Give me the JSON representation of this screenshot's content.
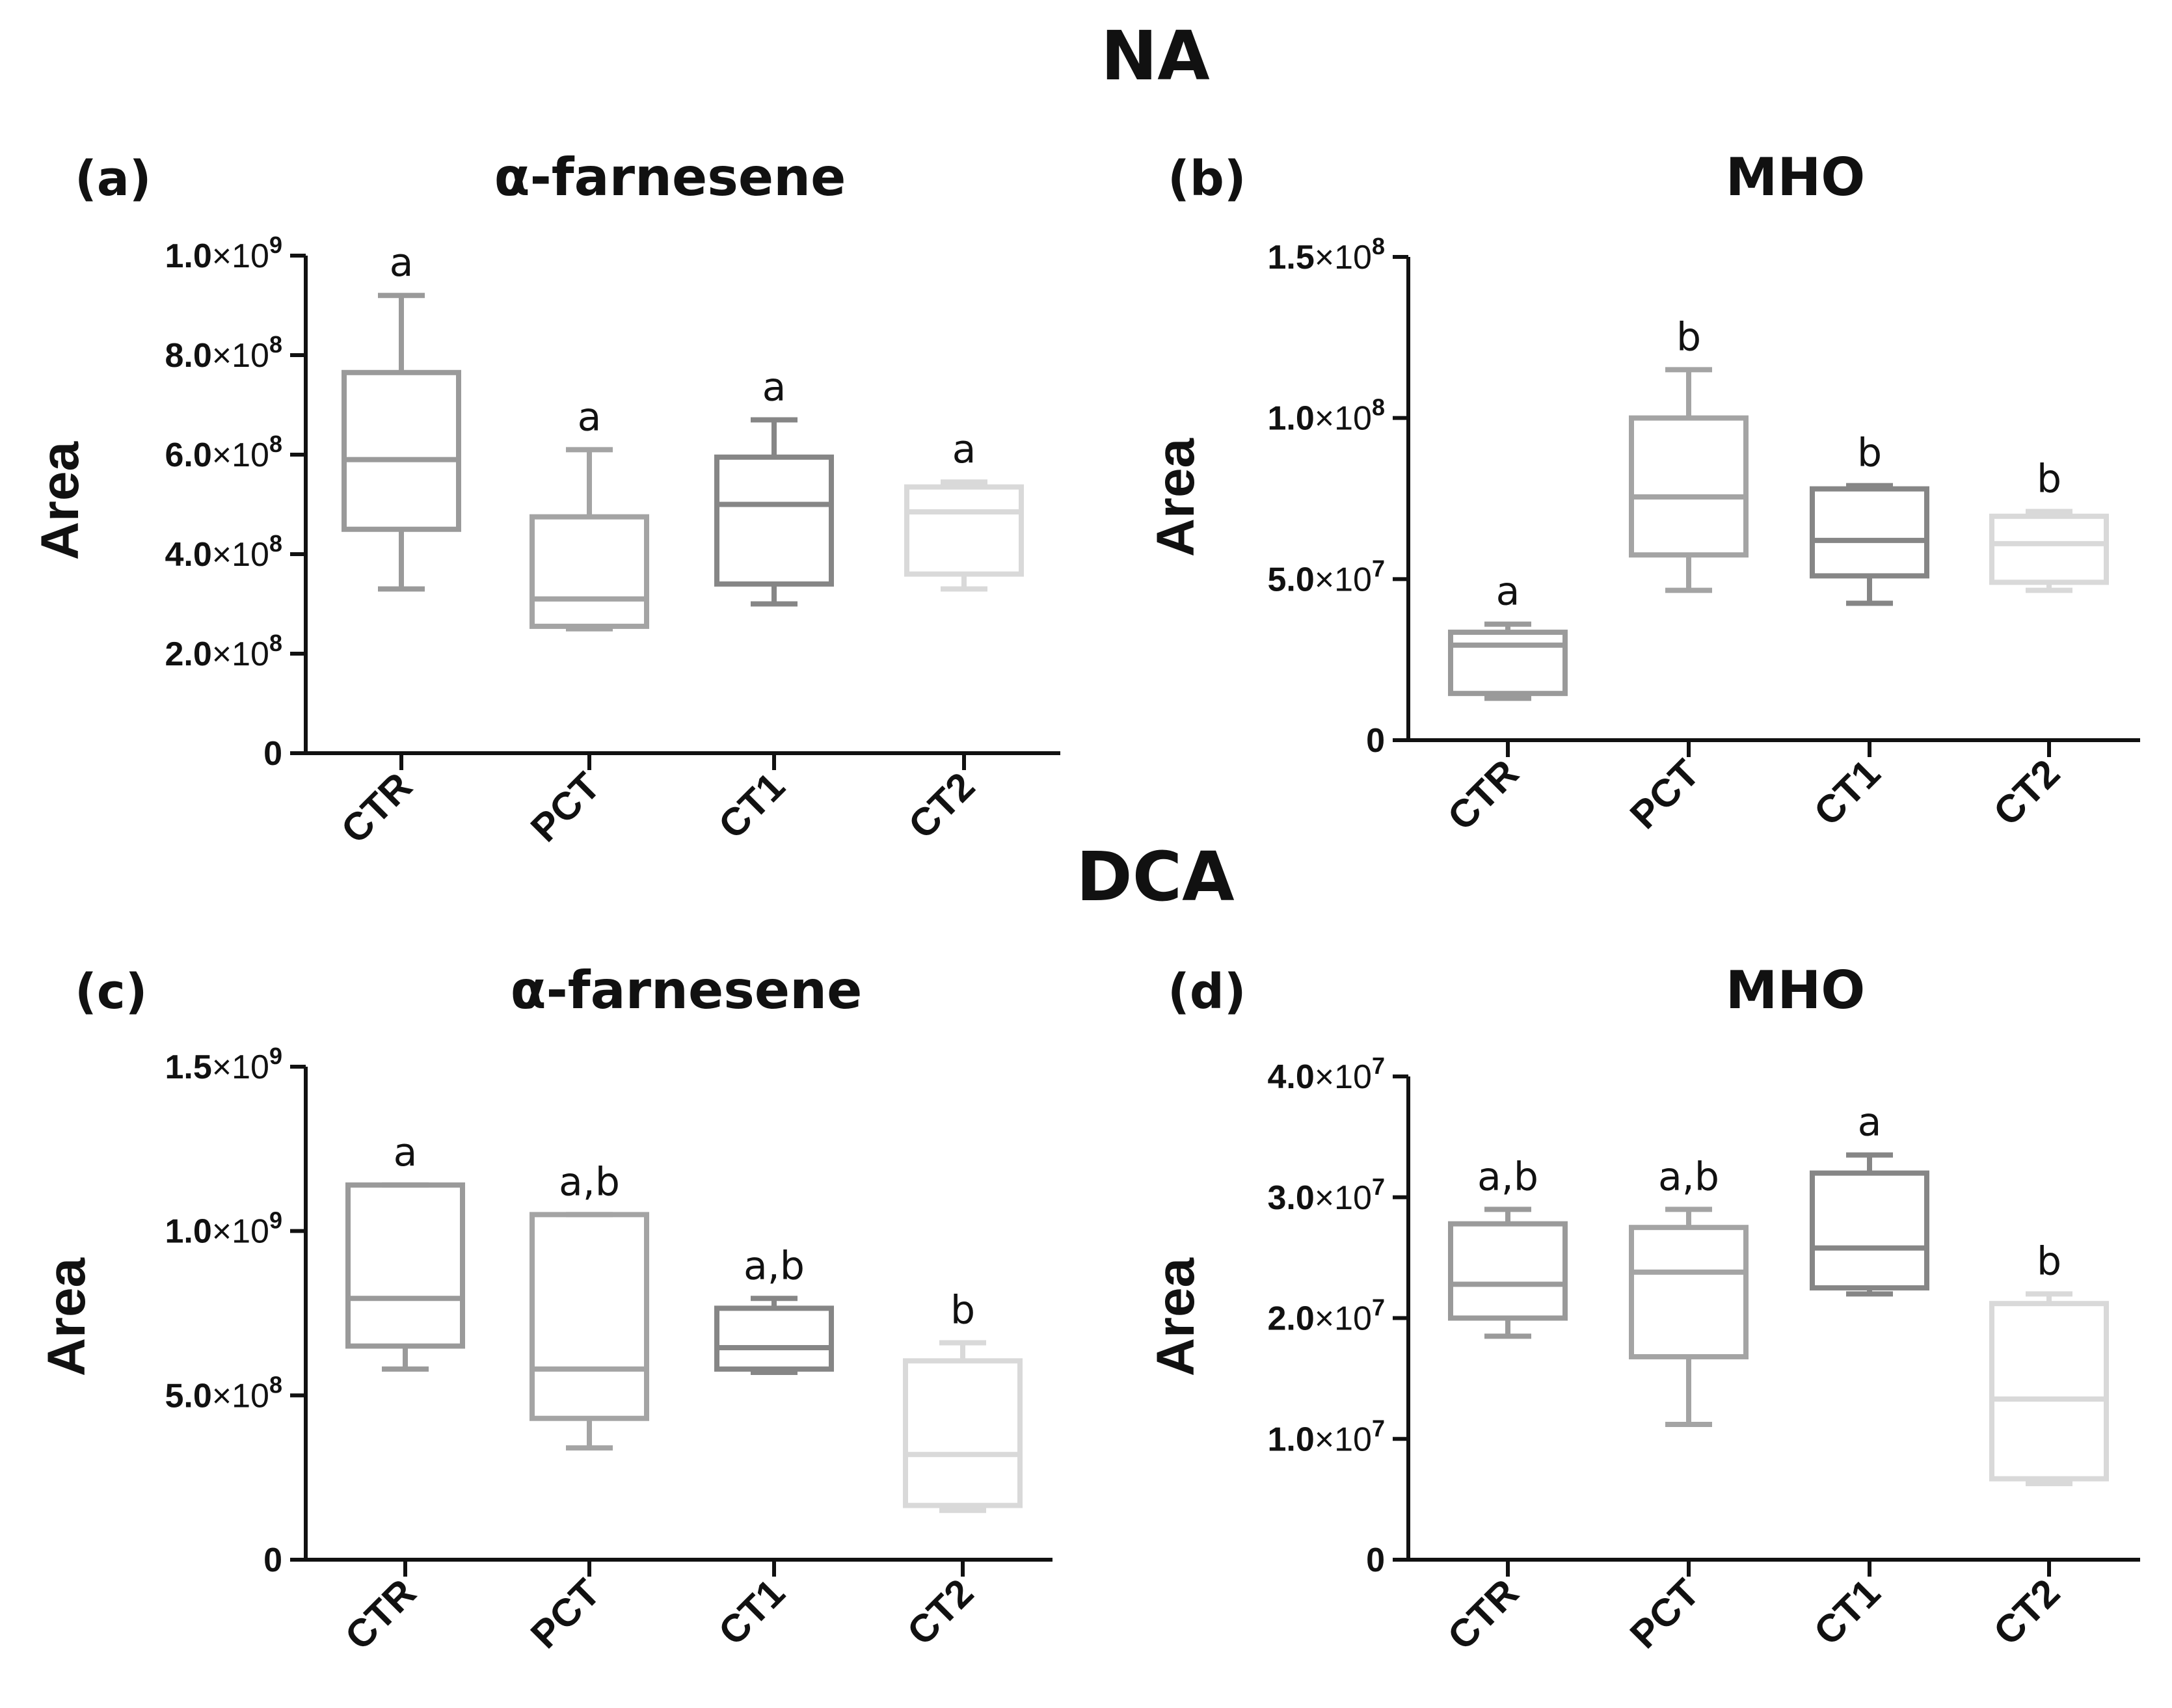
{
  "figure": {
    "groups": [
      {
        "id": "NA",
        "title": "NA"
      },
      {
        "id": "DCA",
        "title": "DCA"
      }
    ]
  },
  "chart_data": [
    {
      "type": "box",
      "group": "NA",
      "panel": "(a)",
      "title": "α-farnesene",
      "ylabel": "Area",
      "xlabel": "",
      "categories": [
        "CTR",
        "PCT",
        "CT1",
        "CT2"
      ],
      "ylim": [
        0,
        1000000000
      ],
      "yticks": [
        {
          "value": 0,
          "mantissa": "0",
          "exponent": ""
        },
        {
          "value": 200000000,
          "mantissa": "2.0",
          "exponent": "8"
        },
        {
          "value": 400000000,
          "mantissa": "4.0",
          "exponent": "8"
        },
        {
          "value": 600000000,
          "mantissa": "6.0",
          "exponent": "8"
        },
        {
          "value": 800000000,
          "mantissa": "8.0",
          "exponent": "8"
        },
        {
          "value": 1000000000,
          "mantissa": "1.0",
          "exponent": "9"
        }
      ],
      "boxes": [
        {
          "category": "CTR",
          "min": 330000000,
          "q1": 450000000,
          "median": 590000000,
          "q3": 765000000,
          "max": 920000000,
          "color": "#9a9a9a",
          "letter": "a"
        },
        {
          "category": "PCT",
          "min": 250000000,
          "q1": 255000000,
          "median": 310000000,
          "q3": 475000000,
          "max": 610000000,
          "color": "#a4a4a4",
          "letter": "a"
        },
        {
          "category": "CT1",
          "min": 300000000,
          "q1": 340000000,
          "median": 500000000,
          "q3": 595000000,
          "max": 670000000,
          "color": "#868686",
          "letter": "a"
        },
        {
          "category": "CT2",
          "min": 330000000,
          "q1": 360000000,
          "median": 485000000,
          "q3": 535000000,
          "max": 545000000,
          "color": "#d9d9d9",
          "letter": "a"
        }
      ]
    },
    {
      "type": "box",
      "group": "NA",
      "panel": "(b)",
      "title": "MHO",
      "ylabel": "Area",
      "xlabel": "",
      "categories": [
        "CTR",
        "PCT",
        "CT1",
        "CT2"
      ],
      "ylim": [
        0,
        150000000
      ],
      "yticks": [
        {
          "value": 0,
          "mantissa": "0",
          "exponent": ""
        },
        {
          "value": 50000000,
          "mantissa": "5.0",
          "exponent": "7"
        },
        {
          "value": 100000000,
          "mantissa": "1.0",
          "exponent": "8"
        },
        {
          "value": 150000000,
          "mantissa": "1.5",
          "exponent": "8"
        }
      ],
      "boxes": [
        {
          "category": "CTR",
          "min": 13000000,
          "q1": 14500000,
          "median": 29500000,
          "q3": 33500000,
          "max": 36000000,
          "color": "#9a9a9a",
          "letter": "a"
        },
        {
          "category": "PCT",
          "min": 46500000,
          "q1": 57500000,
          "median": 75500000,
          "q3": 100000000,
          "max": 115000000,
          "color": "#a4a4a4",
          "letter": "b"
        },
        {
          "category": "CT1",
          "min": 42500000,
          "q1": 51000000,
          "median": 62000000,
          "q3": 78000000,
          "max": 79000000,
          "color": "#868686",
          "letter": "b"
        },
        {
          "category": "CT2",
          "min": 46500000,
          "q1": 49000000,
          "median": 61000000,
          "q3": 69500000,
          "max": 71000000,
          "color": "#d9d9d9",
          "letter": "b"
        }
      ]
    },
    {
      "type": "box",
      "group": "DCA",
      "panel": "(c)",
      "title": "α-farnesene",
      "ylabel": "Area",
      "xlabel": "",
      "categories": [
        "CTR",
        "PCT",
        "CT1",
        "CT2"
      ],
      "ylim": [
        0,
        1500000000
      ],
      "yticks": [
        {
          "value": 0,
          "mantissa": "0",
          "exponent": ""
        },
        {
          "value": 500000000,
          "mantissa": "5.0",
          "exponent": "8"
        },
        {
          "value": 1000000000,
          "mantissa": "1.0",
          "exponent": "9"
        },
        {
          "value": 1500000000,
          "mantissa": "1.5",
          "exponent": "9"
        }
      ],
      "boxes": [
        {
          "category": "CTR",
          "min": 580000000,
          "q1": 650000000,
          "median": 795000000,
          "q3": 1140000000,
          "max": 1140000000,
          "color": "#9a9a9a",
          "letter": "a"
        },
        {
          "category": "PCT",
          "min": 340000000,
          "q1": 430000000,
          "median": 580000000,
          "q3": 1050000000,
          "max": 1050000000,
          "color": "#a4a4a4",
          "letter": "a,b"
        },
        {
          "category": "CT1",
          "min": 570000000,
          "q1": 580000000,
          "median": 645000000,
          "q3": 765000000,
          "max": 795000000,
          "color": "#868686",
          "letter": "a,b"
        },
        {
          "category": "CT2",
          "min": 150000000,
          "q1": 165000000,
          "median": 320000000,
          "q3": 605000000,
          "max": 660000000,
          "color": "#d9d9d9",
          "letter": "b"
        }
      ]
    },
    {
      "type": "box",
      "group": "DCA",
      "panel": "(d)",
      "title": "MHO",
      "ylabel": "Area",
      "xlabel": "",
      "categories": [
        "CTR",
        "PCT",
        "CT1",
        "CT2"
      ],
      "ylim": [
        0,
        40000000
      ],
      "yticks": [
        {
          "value": 0,
          "mantissa": "0",
          "exponent": ""
        },
        {
          "value": 10000000,
          "mantissa": "1.0",
          "exponent": "7"
        },
        {
          "value": 20000000,
          "mantissa": "2.0",
          "exponent": "7"
        },
        {
          "value": 30000000,
          "mantissa": "3.0",
          "exponent": "7"
        },
        {
          "value": 40000000,
          "mantissa": "4.0",
          "exponent": "7"
        }
      ],
      "boxes": [
        {
          "category": "CTR",
          "min": 18500000,
          "q1": 20000000,
          "median": 22800000,
          "q3": 27800000,
          "max": 29000000,
          "color": "#9a9a9a",
          "letter": "a,b"
        },
        {
          "category": "PCT",
          "min": 11200000,
          "q1": 16800000,
          "median": 23800000,
          "q3": 27500000,
          "max": 29000000,
          "color": "#a4a4a4",
          "letter": "a,b"
        },
        {
          "category": "CT1",
          "min": 22000000,
          "q1": 22500000,
          "median": 25800000,
          "q3": 32000000,
          "max": 33500000,
          "color": "#868686",
          "letter": "a"
        },
        {
          "category": "CT2",
          "min": 6300000,
          "q1": 6700000,
          "median": 13300000,
          "q3": 21200000,
          "max": 22000000,
          "color": "#d9d9d9",
          "letter": "b"
        }
      ]
    }
  ]
}
